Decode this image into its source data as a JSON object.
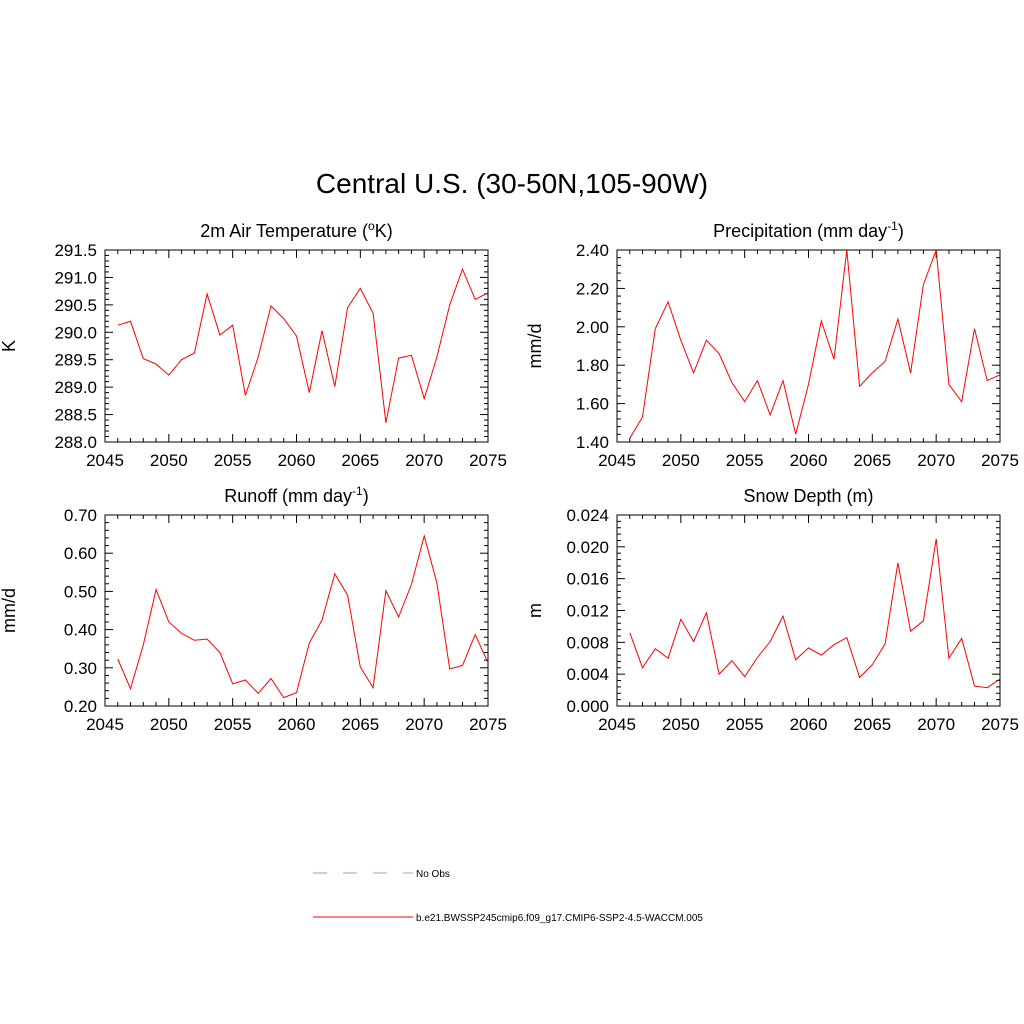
{
  "title": "Central U.S. (30-50N,105-90W)",
  "colors": {
    "series": "#ff0000",
    "no_obs": "#9999dd",
    "axis": "#000000"
  },
  "chart_data": [
    {
      "type": "line",
      "title": "2m Air Temperature (°K)",
      "title_parts": [
        "2m Air Temperature (",
        "o",
        "K)"
      ],
      "ylabel": "K",
      "xlim": [
        2045,
        2075
      ],
      "ylim": [
        288.0,
        291.5
      ],
      "xticks": [
        2045,
        2050,
        2055,
        2060,
        2065,
        2070,
        2075
      ],
      "xtick_labels": [
        "2045",
        "2050",
        "2055",
        "2060",
        "2065",
        "2070",
        "2075"
      ],
      "yticks": [
        288.0,
        288.5,
        289.0,
        289.5,
        290.0,
        290.5,
        291.0,
        291.5
      ],
      "ytick_labels": [
        "288.0",
        "288.5",
        "289.0",
        "289.5",
        "290.0",
        "290.5",
        "291.0",
        "291.5"
      ],
      "series": [
        {
          "name": "b.e21.BWSSP245cmip6.f09_g17.CMIP6-SSP2-4.5-WACCM.005",
          "x": [
            2046,
            2047,
            2048,
            2049,
            2050,
            2051,
            2052,
            2053,
            2054,
            2055,
            2056,
            2057,
            2058,
            2059,
            2060,
            2061,
            2062,
            2063,
            2064,
            2065,
            2066,
            2067,
            2068,
            2069,
            2070,
            2071,
            2072,
            2073,
            2074,
            2075
          ],
          "values": [
            290.13,
            290.2,
            289.52,
            289.42,
            289.22,
            289.5,
            289.62,
            290.7,
            289.95,
            290.13,
            288.85,
            289.55,
            290.48,
            290.25,
            289.93,
            288.9,
            290.03,
            289.01,
            290.45,
            290.8,
            290.35,
            288.35,
            289.53,
            289.58,
            288.79,
            289.55,
            290.5,
            291.15,
            290.6,
            290.72
          ]
        }
      ]
    },
    {
      "type": "line",
      "title": "Precipitation (mm day-1)",
      "title_parts": [
        "Precipitation (mm day",
        "-1",
        ")"
      ],
      "ylabel": "mm/d",
      "xlim": [
        2045,
        2075
      ],
      "ylim": [
        1.4,
        2.4
      ],
      "xticks": [
        2045,
        2050,
        2055,
        2060,
        2065,
        2070,
        2075
      ],
      "xtick_labels": [
        "2045",
        "2050",
        "2055",
        "2060",
        "2065",
        "2070",
        "2075"
      ],
      "yticks": [
        1.4,
        1.6,
        1.8,
        2.0,
        2.2,
        2.4
      ],
      "ytick_labels": [
        "1.40",
        "1.60",
        "1.80",
        "2.00",
        "2.20",
        "2.40"
      ],
      "series": [
        {
          "name": "b.e21.BWSSP245cmip6.f09_g17.CMIP6-SSP2-4.5-WACCM.005",
          "x": [
            2046,
            2047,
            2048,
            2049,
            2050,
            2051,
            2052,
            2053,
            2054,
            2055,
            2056,
            2057,
            2058,
            2059,
            2060,
            2061,
            2062,
            2063,
            2064,
            2065,
            2066,
            2067,
            2068,
            2069,
            2070,
            2071,
            2072,
            2073,
            2074,
            2075
          ],
          "values": [
            1.42,
            1.53,
            1.99,
            2.13,
            1.93,
            1.76,
            1.93,
            1.86,
            1.71,
            1.61,
            1.72,
            1.54,
            1.72,
            1.44,
            1.7,
            2.03,
            1.83,
            2.4,
            1.69,
            1.76,
            1.82,
            2.04,
            1.76,
            2.22,
            2.4,
            1.7,
            1.61,
            1.99,
            1.72,
            1.75
          ]
        }
      ]
    },
    {
      "type": "line",
      "title": "Runoff (mm day-1)",
      "title_parts": [
        "Runoff (mm day",
        "-1",
        ")"
      ],
      "ylabel": "mm/d",
      "xlim": [
        2045,
        2075
      ],
      "ylim": [
        0.2,
        0.7
      ],
      "xticks": [
        2045,
        2050,
        2055,
        2060,
        2065,
        2070,
        2075
      ],
      "xtick_labels": [
        "2045",
        "2050",
        "2055",
        "2060",
        "2065",
        "2070",
        "2075"
      ],
      "yticks": [
        0.2,
        0.3,
        0.4,
        0.5,
        0.6,
        0.7
      ],
      "ytick_labels": [
        "0.20",
        "0.30",
        "0.40",
        "0.50",
        "0.60",
        "0.70"
      ],
      "series": [
        {
          "name": "b.e21.BWSSP245cmip6.f09_g17.CMIP6-SSP2-4.5-WACCM.005",
          "x": [
            2046,
            2047,
            2048,
            2049,
            2050,
            2051,
            2052,
            2053,
            2054,
            2055,
            2056,
            2057,
            2058,
            2059,
            2060,
            2061,
            2062,
            2063,
            2064,
            2065,
            2066,
            2067,
            2068,
            2069,
            2070,
            2071,
            2072,
            2073,
            2074,
            2075
          ],
          "values": [
            0.323,
            0.245,
            0.36,
            0.505,
            0.42,
            0.39,
            0.372,
            0.375,
            0.34,
            0.258,
            0.268,
            0.233,
            0.272,
            0.222,
            0.235,
            0.365,
            0.425,
            0.546,
            0.49,
            0.302,
            0.248,
            0.502,
            0.433,
            0.518,
            0.645,
            0.522,
            0.297,
            0.306,
            0.387,
            0.313
          ]
        }
      ]
    },
    {
      "type": "line",
      "title": "Snow Depth (m)",
      "title_parts": [
        "Snow Depth (m)",
        "",
        ""
      ],
      "ylabel": "m",
      "xlim": [
        2045,
        2075
      ],
      "ylim": [
        0.0,
        0.024
      ],
      "xticks": [
        2045,
        2050,
        2055,
        2060,
        2065,
        2070,
        2075
      ],
      "xtick_labels": [
        "2045",
        "2050",
        "2055",
        "2060",
        "2065",
        "2070",
        "2075"
      ],
      "yticks": [
        0.0,
        0.004,
        0.008,
        0.012,
        0.016,
        0.02,
        0.024
      ],
      "ytick_labels": [
        "0.000",
        "0.004",
        "0.008",
        "0.012",
        "0.016",
        "0.020",
        "0.024"
      ],
      "series": [
        {
          "name": "b.e21.BWSSP245cmip6.f09_g17.CMIP6-SSP2-4.5-WACCM.005",
          "x": [
            2046,
            2047,
            2048,
            2049,
            2050,
            2051,
            2052,
            2053,
            2054,
            2055,
            2056,
            2057,
            2058,
            2059,
            2060,
            2061,
            2062,
            2063,
            2064,
            2065,
            2066,
            2067,
            2068,
            2069,
            2070,
            2071,
            2072,
            2073,
            2074,
            2075
          ],
          "values": [
            0.0092,
            0.0048,
            0.0072,
            0.006,
            0.0109,
            0.0081,
            0.0117,
            0.004,
            0.0057,
            0.0037,
            0.0061,
            0.0081,
            0.0113,
            0.0058,
            0.0073,
            0.0064,
            0.0077,
            0.0086,
            0.0036,
            0.0052,
            0.0078,
            0.018,
            0.0094,
            0.0107,
            0.021,
            0.006,
            0.0085,
            0.0025,
            0.0023,
            0.0034
          ]
        }
      ]
    }
  ],
  "legend": [
    {
      "label": "No Obs",
      "style": "dashed"
    },
    {
      "label": "b.e21.BWSSP245cmip6.f09_g17.CMIP6-SSP2-4.5-WACCM.005",
      "style": "solid"
    }
  ]
}
